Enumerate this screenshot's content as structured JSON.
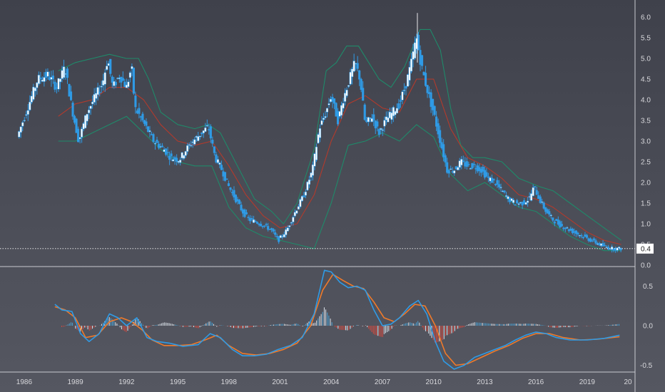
{
  "chart_data": [
    {
      "type": "candlestick",
      "title": "",
      "x_ticks": [
        "1986",
        "1989",
        "1992",
        "1995",
        "1998",
        "2001",
        "2004",
        "2007",
        "2010",
        "2013",
        "2016",
        "2019",
        "20"
      ],
      "y_ticks": [
        "6.0",
        "5.5",
        "5.0",
        "4.5",
        "4.0",
        "3.5",
        "3.0",
        "2.5",
        "2.0",
        "1.5",
        "1.0",
        "0.5",
        "0.0"
      ],
      "ylim": [
        0,
        6.2
      ],
      "last_value_label": "0.4",
      "colors": {
        "candle": "#2f9be6",
        "candle_body": "#ffffff",
        "bands": "#1f8a6a",
        "middle_band": "#b33a2c",
        "last_line": "#ffffff"
      },
      "price_path": [
        [
          1985.7,
          3.1
        ],
        [
          1986.3,
          3.8
        ],
        [
          1986.9,
          4.5
        ],
        [
          1987.5,
          4.6
        ],
        [
          1988.0,
          4.3
        ],
        [
          1988.5,
          4.8
        ],
        [
          1988.9,
          3.8
        ],
        [
          1989.3,
          3.0
        ],
        [
          1989.8,
          3.7
        ],
        [
          1990.3,
          4.1
        ],
        [
          1990.7,
          4.4
        ],
        [
          1991.0,
          5.0
        ],
        [
          1991.3,
          4.3
        ],
        [
          1991.7,
          4.6
        ],
        [
          1992.1,
          4.3
        ],
        [
          1992.4,
          4.8
        ],
        [
          1992.6,
          3.8
        ],
        [
          1992.9,
          3.6
        ],
        [
          1993.3,
          3.3
        ],
        [
          1993.7,
          3.0
        ],
        [
          1994.3,
          2.8
        ],
        [
          1994.7,
          2.6
        ],
        [
          1995.2,
          2.55
        ],
        [
          1995.6,
          2.8
        ],
        [
          1996.0,
          3.0
        ],
        [
          1996.5,
          3.2
        ],
        [
          1996.9,
          3.35
        ],
        [
          1997.3,
          2.6
        ],
        [
          1997.7,
          2.3
        ],
        [
          1998.1,
          1.9
        ],
        [
          1998.5,
          1.6
        ],
        [
          1998.9,
          1.3
        ],
        [
          1999.3,
          1.1
        ],
        [
          1999.7,
          1.05
        ],
        [
          2000.2,
          0.95
        ],
        [
          2000.6,
          0.85
        ],
        [
          2001.0,
          0.6
        ],
        [
          2001.5,
          0.85
        ],
        [
          2002.0,
          1.3
        ],
        [
          2002.5,
          1.7
        ],
        [
          2003.0,
          2.3
        ],
        [
          2003.4,
          3.3
        ],
        [
          2003.8,
          3.7
        ],
        [
          2004.1,
          4.1
        ],
        [
          2004.5,
          3.5
        ],
        [
          2004.8,
          4.0
        ],
        [
          2005.1,
          4.4
        ],
        [
          2005.5,
          4.9
        ],
        [
          2005.8,
          4.5
        ],
        [
          2006.1,
          3.4
        ],
        [
          2006.5,
          3.6
        ],
        [
          2006.9,
          3.2
        ],
        [
          2007.3,
          3.5
        ],
        [
          2007.7,
          3.7
        ],
        [
          2008.1,
          3.9
        ],
        [
          2008.5,
          4.4
        ],
        [
          2008.8,
          4.9
        ],
        [
          2009.1,
          5.5
        ],
        [
          2009.4,
          4.8
        ],
        [
          2009.7,
          4.3
        ],
        [
          2010.1,
          3.7
        ],
        [
          2010.5,
          3.0
        ],
        [
          2010.9,
          2.3
        ],
        [
          2011.3,
          2.3
        ],
        [
          2011.7,
          2.5
        ],
        [
          2012.1,
          2.4
        ],
        [
          2012.5,
          2.4
        ],
        [
          2012.9,
          2.3
        ],
        [
          2013.3,
          2.1
        ],
        [
          2013.7,
          2.0
        ],
        [
          2014.1,
          1.8
        ],
        [
          2014.5,
          1.6
        ],
        [
          2014.9,
          1.5
        ],
        [
          2015.3,
          1.5
        ],
        [
          2015.7,
          1.6
        ],
        [
          2016.0,
          1.9
        ],
        [
          2016.3,
          1.6
        ],
        [
          2016.7,
          1.3
        ],
        [
          2017.1,
          1.1
        ],
        [
          2017.6,
          0.95
        ],
        [
          2018.1,
          0.85
        ],
        [
          2018.6,
          0.75
        ],
        [
          2019.1,
          0.65
        ],
        [
          2019.6,
          0.55
        ],
        [
          2020.1,
          0.45
        ],
        [
          2020.6,
          0.4
        ],
        [
          2021.0,
          0.4
        ]
      ],
      "upper_band": [
        [
          1988.0,
          4.7
        ],
        [
          1989.0,
          4.9
        ],
        [
          1990.0,
          5.0
        ],
        [
          1991.0,
          5.1
        ],
        [
          1992.0,
          5.0
        ],
        [
          1992.7,
          5.0
        ],
        [
          1993.3,
          4.5
        ],
        [
          1994.0,
          3.7
        ],
        [
          1995.0,
          3.4
        ],
        [
          1996.0,
          3.3
        ],
        [
          1996.8,
          3.4
        ],
        [
          1997.5,
          3.2
        ],
        [
          1998.5,
          2.4
        ],
        [
          1999.5,
          1.6
        ],
        [
          2000.5,
          1.3
        ],
        [
          2001.2,
          1.0
        ],
        [
          2002.0,
          1.5
        ],
        [
          2003.0,
          2.8
        ],
        [
          2003.7,
          4.7
        ],
        [
          2004.3,
          4.9
        ],
        [
          2004.9,
          5.3
        ],
        [
          2005.6,
          5.3
        ],
        [
          2006.2,
          4.9
        ],
        [
          2006.8,
          4.5
        ],
        [
          2007.5,
          4.3
        ],
        [
          2008.3,
          4.8
        ],
        [
          2009.2,
          5.7
        ],
        [
          2009.8,
          5.7
        ],
        [
          2010.4,
          5.2
        ],
        [
          2011.0,
          3.8
        ],
        [
          2011.6,
          2.9
        ],
        [
          2012.3,
          2.6
        ],
        [
          2013.0,
          2.6
        ],
        [
          2014.0,
          2.5
        ],
        [
          2015.0,
          2.1
        ],
        [
          2016.2,
          1.9
        ],
        [
          2017.0,
          1.8
        ],
        [
          2018.0,
          1.5
        ],
        [
          2019.0,
          1.2
        ],
        [
          2020.0,
          0.9
        ],
        [
          2021.0,
          0.6
        ]
      ],
      "middle_band": [
        [
          1988.0,
          3.6
        ],
        [
          1989.0,
          3.9
        ],
        [
          1990.0,
          4.0
        ],
        [
          1991.0,
          4.3
        ],
        [
          1992.0,
          4.3
        ],
        [
          1993.0,
          4.0
        ],
        [
          1994.0,
          3.4
        ],
        [
          1995.0,
          3.0
        ],
        [
          1996.0,
          2.9
        ],
        [
          1997.0,
          3.0
        ],
        [
          1998.0,
          2.4
        ],
        [
          1999.0,
          1.7
        ],
        [
          2000.0,
          1.2
        ],
        [
          2001.0,
          0.9
        ],
        [
          2002.0,
          1.0
        ],
        [
          2003.0,
          1.7
        ],
        [
          2004.0,
          3.0
        ],
        [
          2005.0,
          3.9
        ],
        [
          2006.0,
          4.1
        ],
        [
          2007.0,
          3.8
        ],
        [
          2008.0,
          3.7
        ],
        [
          2009.0,
          4.5
        ],
        [
          2010.0,
          4.5
        ],
        [
          2011.0,
          3.3
        ],
        [
          2012.0,
          2.6
        ],
        [
          2013.0,
          2.4
        ],
        [
          2014.0,
          2.1
        ],
        [
          2015.0,
          1.7
        ],
        [
          2016.0,
          1.6
        ],
        [
          2017.0,
          1.4
        ],
        [
          2018.0,
          1.1
        ],
        [
          2019.0,
          0.8
        ],
        [
          2020.0,
          0.6
        ],
        [
          2021.0,
          0.5
        ]
      ],
      "lower_band": [
        [
          1988.0,
          3.0
        ],
        [
          1989.0,
          3.0
        ],
        [
          1990.0,
          3.2
        ],
        [
          1991.0,
          3.4
        ],
        [
          1992.0,
          3.6
        ],
        [
          1993.0,
          3.2
        ],
        [
          1994.0,
          2.8
        ],
        [
          1995.0,
          2.5
        ],
        [
          1996.0,
          2.4
        ],
        [
          1997.0,
          2.4
        ],
        [
          1998.0,
          1.4
        ],
        [
          1999.0,
          0.9
        ],
        [
          2000.0,
          0.7
        ],
        [
          2001.0,
          0.6
        ],
        [
          2002.0,
          0.5
        ],
        [
          2003.0,
          0.4
        ],
        [
          2004.0,
          1.5
        ],
        [
          2005.0,
          2.9
        ],
        [
          2006.0,
          3.0
        ],
        [
          2007.0,
          3.2
        ],
        [
          2008.0,
          3.0
        ],
        [
          2009.0,
          3.4
        ],
        [
          2010.0,
          3.1
        ],
        [
          2011.0,
          2.2
        ],
        [
          2012.0,
          1.8
        ],
        [
          2013.0,
          2.0
        ],
        [
          2014.0,
          1.7
        ],
        [
          2015.0,
          1.4
        ],
        [
          2016.0,
          1.3
        ],
        [
          2017.0,
          1.0
        ],
        [
          2018.0,
          0.7
        ],
        [
          2019.0,
          0.5
        ],
        [
          2020.0,
          0.35
        ],
        [
          2021.0,
          0.35
        ]
      ]
    },
    {
      "type": "line",
      "title": "",
      "y_ticks": [
        "0.5",
        "0.0",
        "-0.5"
      ],
      "ylim": [
        -0.6,
        0.75
      ],
      "colors": {
        "macd": "#2f9be6",
        "signal": "#f07a2a",
        "hist_pos": "#dfe6ee",
        "hist_neg": "#e0493c",
        "hist_pos_alt": "#4aa3d6"
      },
      "series": [
        {
          "values": [
            [
              1987.8,
              0.27
            ],
            [
              1988.2,
              0.2
            ],
            [
              1988.8,
              0.18
            ],
            [
              1989.3,
              -0.1
            ],
            [
              1989.8,
              -0.2
            ],
            [
              1990.4,
              -0.1
            ],
            [
              1991.0,
              0.15
            ],
            [
              1991.5,
              0.1
            ],
            [
              1992.0,
              0.0
            ],
            [
              1992.6,
              0.1
            ],
            [
              1993.2,
              -0.15
            ],
            [
              1993.8,
              -0.2
            ],
            [
              1994.5,
              -0.22
            ],
            [
              1995.3,
              -0.26
            ],
            [
              1996.2,
              -0.24
            ],
            [
              1996.9,
              -0.1
            ],
            [
              1997.5,
              -0.15
            ],
            [
              1998.2,
              -0.3
            ],
            [
              1998.8,
              -0.38
            ],
            [
              1999.5,
              -0.38
            ],
            [
              2000.2,
              -0.36
            ],
            [
              2000.9,
              -0.3
            ],
            [
              2001.6,
              -0.25
            ],
            [
              2002.3,
              -0.15
            ],
            [
              2003.0,
              0.15
            ],
            [
              2003.6,
              0.7
            ],
            [
              2004.0,
              0.68
            ],
            [
              2004.5,
              0.55
            ],
            [
              2005.0,
              0.48
            ],
            [
              2005.5,
              0.5
            ],
            [
              2006.0,
              0.45
            ],
            [
              2006.5,
              0.2
            ],
            [
              2007.0,
              0.0
            ],
            [
              2007.5,
              0.02
            ],
            [
              2008.0,
              0.1
            ],
            [
              2008.6,
              0.25
            ],
            [
              2009.1,
              0.32
            ],
            [
              2009.6,
              0.15
            ],
            [
              2010.1,
              -0.2
            ],
            [
              2010.6,
              -0.45
            ],
            [
              2011.2,
              -0.55
            ],
            [
              2011.8,
              -0.5
            ],
            [
              2012.4,
              -0.4
            ],
            [
              2013.0,
              -0.35
            ],
            [
              2013.6,
              -0.3
            ],
            [
              2014.2,
              -0.25
            ],
            [
              2014.8,
              -0.18
            ],
            [
              2015.4,
              -0.12
            ],
            [
              2016.0,
              -0.08
            ],
            [
              2016.6,
              -0.1
            ],
            [
              2017.2,
              -0.15
            ],
            [
              2018.0,
              -0.18
            ],
            [
              2019.0,
              -0.18
            ],
            [
              2020.0,
              -0.16
            ],
            [
              2020.9,
              -0.12
            ]
          ]
        },
        {
          "values": [
            [
              1987.8,
              0.24
            ],
            [
              1988.4,
              0.2
            ],
            [
              1989.0,
              0.1
            ],
            [
              1989.6,
              -0.15
            ],
            [
              1990.3,
              -0.12
            ],
            [
              1991.0,
              0.05
            ],
            [
              1991.7,
              0.1
            ],
            [
              1992.3,
              0.05
            ],
            [
              1992.9,
              -0.05
            ],
            [
              1993.5,
              -0.18
            ],
            [
              1994.2,
              -0.25
            ],
            [
              1995.0,
              -0.25
            ],
            [
              1995.8,
              -0.24
            ],
            [
              1996.6,
              -0.18
            ],
            [
              1997.3,
              -0.12
            ],
            [
              1998.0,
              -0.25
            ],
            [
              1998.8,
              -0.35
            ],
            [
              1999.6,
              -0.37
            ],
            [
              2000.4,
              -0.35
            ],
            [
              2001.2,
              -0.3
            ],
            [
              2002.0,
              -0.22
            ],
            [
              2002.8,
              0.0
            ],
            [
              2003.5,
              0.45
            ],
            [
              2004.1,
              0.65
            ],
            [
              2004.7,
              0.57
            ],
            [
              2005.3,
              0.5
            ],
            [
              2005.9,
              0.47
            ],
            [
              2006.5,
              0.3
            ],
            [
              2007.1,
              0.1
            ],
            [
              2007.7,
              0.05
            ],
            [
              2008.3,
              0.15
            ],
            [
              2008.9,
              0.27
            ],
            [
              2009.5,
              0.25
            ],
            [
              2010.1,
              0.0
            ],
            [
              2010.7,
              -0.35
            ],
            [
              2011.3,
              -0.5
            ],
            [
              2012.0,
              -0.48
            ],
            [
              2012.8,
              -0.4
            ],
            [
              2013.6,
              -0.32
            ],
            [
              2014.4,
              -0.25
            ],
            [
              2015.2,
              -0.16
            ],
            [
              2016.0,
              -0.1
            ],
            [
              2016.8,
              -0.1
            ],
            [
              2017.6,
              -0.15
            ],
            [
              2018.6,
              -0.18
            ],
            [
              2019.6,
              -0.17
            ],
            [
              2020.9,
              -0.14
            ]
          ]
        }
      ]
    }
  ]
}
